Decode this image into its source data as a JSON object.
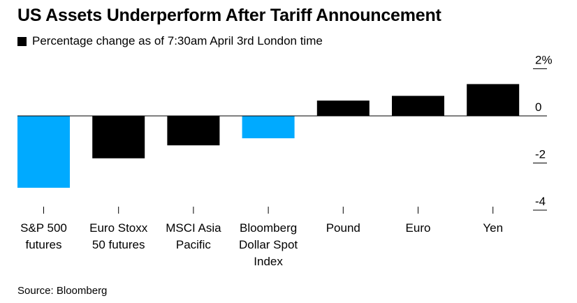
{
  "chart_data": {
    "type": "bar",
    "title": "US Assets Underperform After Tariff Announcement",
    "legend": [
      {
        "name": "Percentage change as of 7:30am April 3rd London time",
        "color": "#000000"
      }
    ],
    "legend_placement": "top-left",
    "categories": [
      [
        "S&P 500",
        "futures"
      ],
      [
        "Euro Stoxx",
        "50 futures"
      ],
      [
        "MSCI Asia",
        "Pacific"
      ],
      [
        "Bloomberg",
        "Dollar Spot",
        "Index"
      ],
      [
        "Pound"
      ],
      [
        "Euro"
      ],
      [
        "Yen"
      ]
    ],
    "values": [
      -3.05,
      -1.8,
      -1.25,
      -0.95,
      0.65,
      0.85,
      1.35
    ],
    "bar_colors": [
      "#00aaff",
      "#000000",
      "#000000",
      "#00aaff",
      "#000000",
      "#000000",
      "#000000"
    ],
    "y_ticks": [
      {
        "value": 2,
        "label": "2%"
      },
      {
        "value": 0,
        "label": "0"
      },
      {
        "value": -2,
        "label": "-2"
      },
      {
        "value": -4,
        "label": "-4"
      }
    ],
    "ylim": [
      -4,
      2
    ],
    "y_axis_position": "right",
    "grid": false,
    "source": "Source: Bloomberg"
  }
}
